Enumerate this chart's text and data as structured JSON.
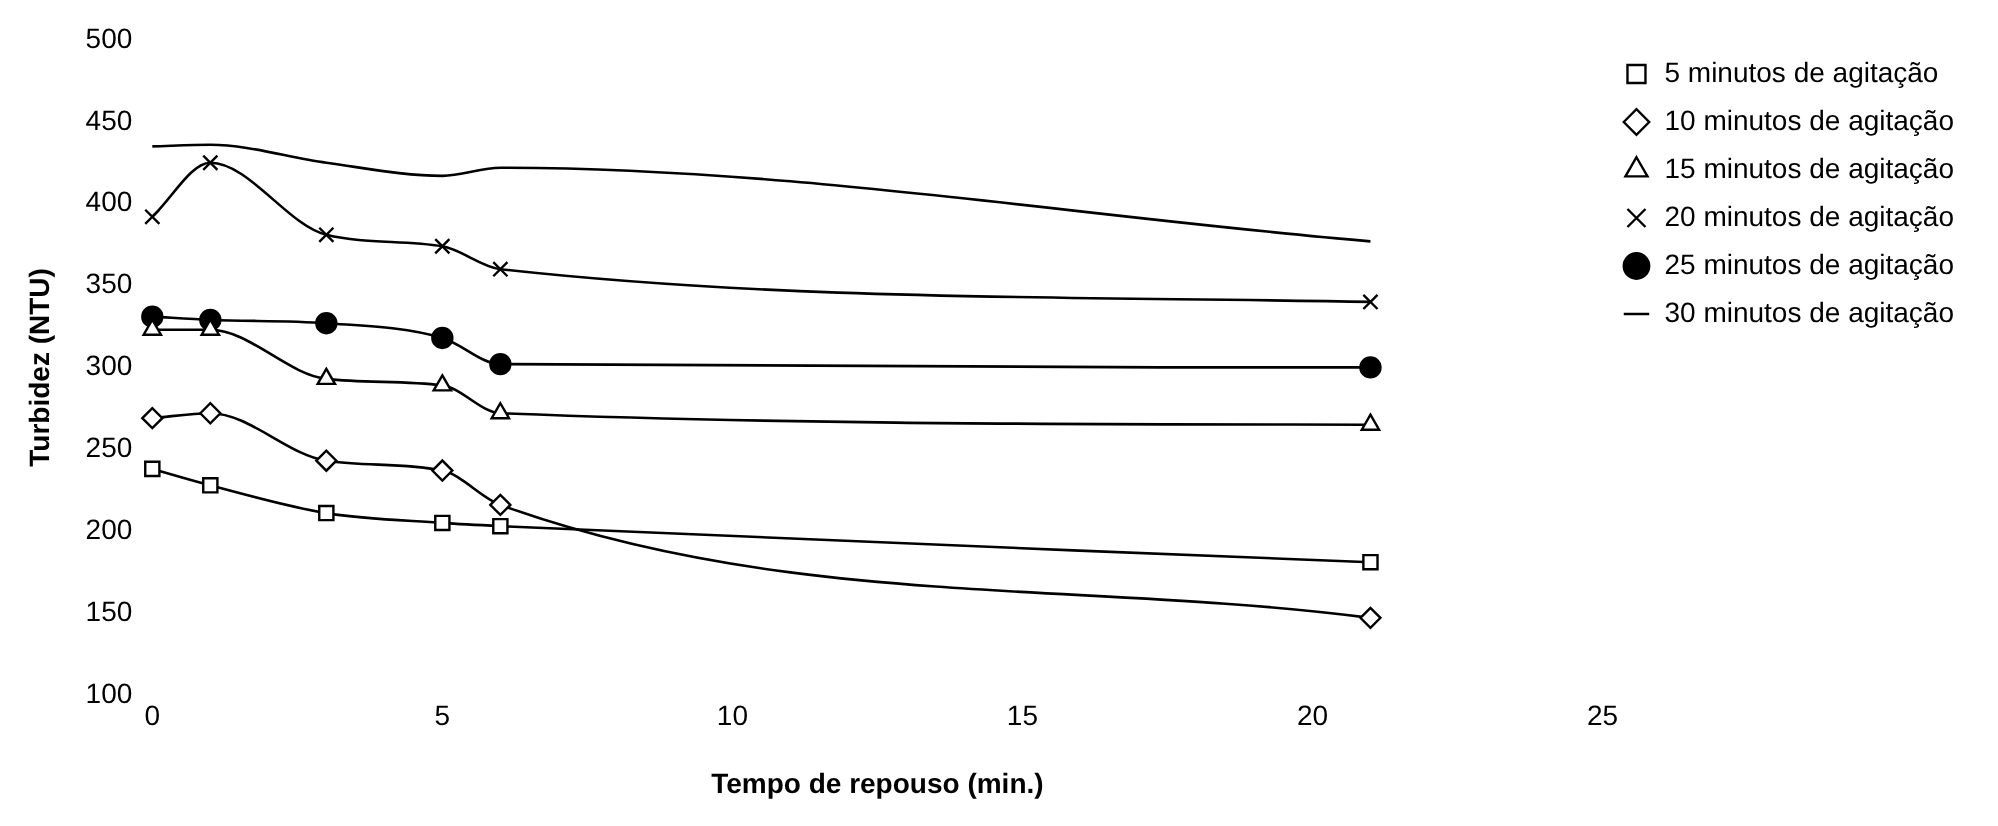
{
  "chart_data": {
    "type": "line",
    "xlabel": "Tempo de repouso (min.)",
    "ylabel": "Turbidez (NTU)",
    "xlim": [
      0,
      25
    ],
    "xticks": [
      0,
      5,
      10,
      15,
      20,
      25
    ],
    "ylim": [
      100,
      500
    ],
    "yticks": [
      100,
      150,
      200,
      250,
      300,
      350,
      400,
      450,
      500
    ],
    "grid": false,
    "legend": "top right",
    "x": [
      0,
      1,
      3,
      5,
      6,
      21
    ],
    "series": [
      {
        "name": "5 minutos de agitação",
        "color": "#000000",
        "marker": "square",
        "values": [
          238,
          228,
          211,
          205,
          203,
          181
        ]
      },
      {
        "name": "10 minutos de agitação",
        "color": "#000000",
        "marker": "diamond",
        "values": [
          269,
          272,
          243,
          237,
          216,
          147
        ]
      },
      {
        "name": "15 minutos de agitação",
        "color": "#000000",
        "marker": "triangle",
        "values": [
          323,
          323,
          293,
          289,
          272,
          265
        ]
      },
      {
        "name": "20 minutos de agitação",
        "color": "#000000",
        "marker": "cross",
        "values": [
          392,
          425,
          381,
          374,
          360,
          340
        ]
      },
      {
        "name": "25 minutos de agitação",
        "color": "#000000",
        "marker": "circle",
        "values": [
          331,
          329,
          327,
          318,
          302,
          300
        ]
      },
      {
        "name": "30 minutos de agitação",
        "color": "#000000",
        "marker": "none",
        "values": [
          435,
          436,
          425,
          417,
          422,
          377
        ]
      }
    ]
  }
}
